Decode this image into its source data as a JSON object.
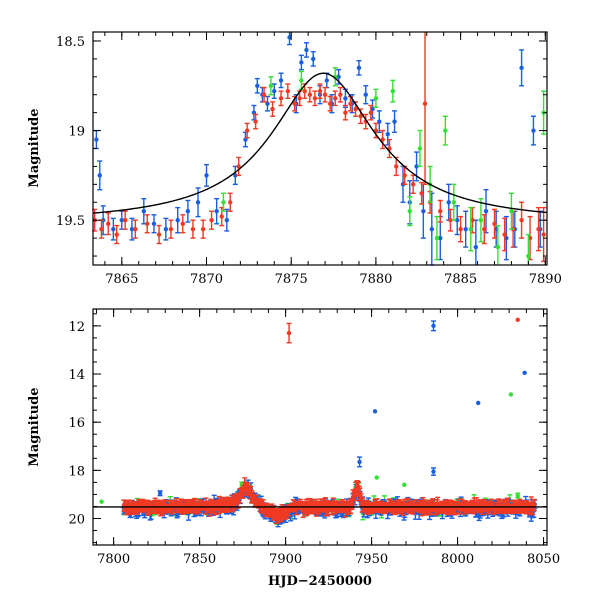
{
  "colors": {
    "blue": "#1a5fe0",
    "red": "#f03a24",
    "green": "#33e033",
    "model": "#000000"
  },
  "chart_data": [
    {
      "type": "scatter",
      "title": "",
      "xlabel": "",
      "ylabel": "Magnitude",
      "xlim": [
        7863.3,
        7890.1
      ],
      "ylim": [
        19.75,
        18.45
      ],
      "y_inverted": true,
      "x_ticks": [
        "7865",
        "7870",
        "7875",
        "7880",
        "7885",
        "7890"
      ],
      "y_ticks": [
        "18.5",
        "19",
        "19.5"
      ],
      "model_curve": {
        "description_visible": false,
        "peak_x": 7876.9,
        "peak_mag": 18.68,
        "baseline_mag": 19.52,
        "fwhm_days": 7.5
      },
      "series": [
        {
          "color": "blue",
          "x": [
            7863.5,
            7863.7,
            7863.9,
            7864.5,
            7865.0,
            7865.6,
            7866.3,
            7866.9,
            7867.6,
            7868.3,
            7868.9,
            7869.5,
            7870.0,
            7870.6,
            7871.2,
            7871.7,
            7872.3,
            7872.8,
            7873.0,
            7873.3,
            7873.6,
            7874.0,
            7874.4,
            7874.9,
            7875.3,
            7875.6,
            7875.9,
            7876.3,
            7876.7,
            7877.1,
            7877.4,
            7877.8,
            7878.2,
            7878.6,
            7879.0,
            7879.4,
            7879.8,
            7880.2,
            7880.7,
            7881.1,
            7881.6,
            7882.0,
            7882.4,
            7882.8,
            7883.3,
            7883.8,
            7884.3,
            7884.8,
            7885.3,
            7885.9,
            7886.5,
            7887.1,
            7887.7,
            7888.2,
            7888.6,
            7889.3,
            7889.7
          ],
          "y": [
            19.05,
            19.25,
            19.5,
            19.55,
            19.5,
            19.55,
            19.45,
            19.52,
            19.55,
            19.5,
            19.45,
            19.4,
            19.25,
            19.45,
            19.5,
            19.25,
            19.05,
            18.9,
            18.75,
            18.8,
            18.85,
            18.78,
            18.72,
            18.48,
            18.85,
            18.62,
            18.55,
            18.6,
            18.8,
            18.72,
            18.85,
            18.7,
            18.82,
            18.85,
            18.65,
            18.8,
            18.88,
            18.95,
            19.02,
            18.95,
            19.3,
            19.4,
            19.2,
            19.45,
            19.55,
            19.6,
            19.4,
            19.5,
            19.55,
            19.65,
            19.45,
            19.55,
            19.6,
            19.55,
            18.65,
            19.0,
            19.55
          ],
          "err": [
            0.05,
            0.08,
            0.08,
            0.06,
            0.05,
            0.06,
            0.07,
            0.05,
            0.06,
            0.07,
            0.06,
            0.08,
            0.06,
            0.07,
            0.06,
            0.05,
            0.04,
            0.04,
            0.04,
            0.04,
            0.04,
            0.04,
            0.04,
            0.04,
            0.05,
            0.04,
            0.04,
            0.04,
            0.05,
            0.04,
            0.05,
            0.04,
            0.05,
            0.05,
            0.04,
            0.05,
            0.05,
            0.06,
            0.06,
            0.06,
            0.1,
            0.12,
            0.08,
            0.15,
            0.2,
            0.12,
            0.1,
            0.08,
            0.1,
            0.15,
            0.12,
            0.1,
            0.12,
            0.1,
            0.1,
            0.08,
            0.1
          ]
        },
        {
          "color": "red",
          "x": [
            7863.4,
            7863.8,
            7864.2,
            7864.7,
            7865.2,
            7865.8,
            7866.5,
            7867.2,
            7867.9,
            7868.6,
            7869.2,
            7869.8,
            7870.3,
            7870.9,
            7871.4,
            7871.9,
            7872.4,
            7872.9,
            7873.4,
            7873.9,
            7874.4,
            7874.8,
            7875.2,
            7875.5,
            7875.8,
            7876.1,
            7876.4,
            7876.7,
            7877.0,
            7877.3,
            7877.6,
            7877.9,
            7878.2,
            7878.5,
            7878.8,
            7879.1,
            7879.4,
            7879.7,
            7880.0,
            7880.4,
            7880.8,
            7881.2,
            7881.7,
            7882.2,
            7882.7,
            7882.9,
            7883.2,
            7883.8,
            7884.4,
            7885.0,
            7885.7,
            7886.4,
            7887.0,
            7887.6,
            7888.1,
            7888.6,
            7889.1,
            7889.6,
            7889.9
          ],
          "y": [
            19.5,
            19.55,
            19.52,
            19.58,
            19.5,
            19.55,
            19.52,
            19.58,
            19.55,
            19.52,
            19.55,
            19.55,
            19.5,
            19.48,
            19.4,
            19.2,
            19.0,
            18.95,
            18.8,
            18.88,
            18.82,
            18.78,
            18.85,
            18.82,
            18.78,
            18.8,
            18.82,
            18.78,
            18.8,
            18.85,
            18.82,
            18.8,
            18.9,
            18.85,
            18.88,
            18.92,
            18.95,
            18.9,
            19.0,
            19.05,
            19.1,
            19.2,
            19.25,
            19.3,
            19.35,
            18.85,
            19.4,
            19.45,
            19.5,
            19.55,
            19.5,
            19.55,
            19.52,
            19.58,
            19.55,
            19.5,
            19.6,
            19.55,
            19.58
          ],
          "err": [
            0.06,
            0.05,
            0.06,
            0.05,
            0.05,
            0.05,
            0.05,
            0.05,
            0.05,
            0.05,
            0.05,
            0.05,
            0.05,
            0.05,
            0.05,
            0.05,
            0.04,
            0.04,
            0.04,
            0.04,
            0.04,
            0.04,
            0.04,
            0.04,
            0.04,
            0.04,
            0.04,
            0.04,
            0.04,
            0.04,
            0.04,
            0.04,
            0.04,
            0.04,
            0.04,
            0.04,
            0.04,
            0.04,
            0.04,
            0.05,
            0.05,
            0.05,
            0.05,
            0.05,
            0.06,
            0.45,
            0.06,
            0.06,
            0.06,
            0.07,
            0.07,
            0.08,
            0.08,
            0.09,
            0.1,
            0.1,
            0.12,
            0.12,
            0.15
          ]
        },
        {
          "color": "green",
          "x": [
            7871.0,
            7873.8,
            7875.6,
            7877.6,
            7880.0,
            7881.0,
            7882.0,
            7882.6,
            7883.2,
            7883.6,
            7884.1,
            7884.6,
            7885.6,
            7886.2,
            7887.2,
            7888.0,
            7889.0,
            7889.9
          ],
          "y": [
            19.4,
            18.75,
            18.72,
            18.7,
            18.82,
            18.78,
            19.45,
            19.1,
            19.3,
            19.6,
            19.0,
            19.4,
            19.55,
            19.5,
            19.65,
            19.45,
            19.7,
            18.9
          ],
          "err": [
            0.05,
            0.05,
            0.05,
            0.05,
            0.05,
            0.06,
            0.08,
            0.1,
            0.1,
            0.12,
            0.08,
            0.1,
            0.12,
            0.12,
            0.12,
            0.1,
            0.12,
            0.12
          ]
        }
      ]
    },
    {
      "type": "scatter",
      "title": "",
      "xlabel": "HJD−2450000",
      "ylabel": "Magnitude",
      "xlim": [
        7788,
        8052
      ],
      "ylim": [
        21.1,
        11.3
      ],
      "y_inverted": true,
      "x_ticks": [
        "7800",
        "7850",
        "7900",
        "7950",
        "8000",
        "8050"
      ],
      "y_ticks": [
        "12",
        "14",
        "16",
        "18",
        "20"
      ],
      "baseline_mag": 19.52,
      "outliers": [
        {
          "color": "red",
          "x": 7902,
          "y": 12.3,
          "err": 0.4
        },
        {
          "color": "blue",
          "x": 7986,
          "y": 12.0,
          "err": 0.2
        },
        {
          "color": "red",
          "x": 8035,
          "y": 11.75,
          "err": 0
        },
        {
          "color": "blue",
          "x": 8039,
          "y": 13.95,
          "err": 0
        },
        {
          "color": "blue",
          "x": 7952,
          "y": 15.55,
          "err": 0
        },
        {
          "color": "blue",
          "x": 8012,
          "y": 15.2,
          "err": 0
        },
        {
          "color": "green",
          "x": 8031,
          "y": 14.85,
          "err": 0
        },
        {
          "color": "blue",
          "x": 7986,
          "y": 18.05,
          "err": 0.15
        },
        {
          "color": "blue",
          "x": 7943,
          "y": 17.65,
          "err": 0.2
        },
        {
          "color": "green",
          "x": 7793,
          "y": 19.3,
          "err": 0
        },
        {
          "color": "green",
          "x": 7953,
          "y": 18.3,
          "err": 0
        },
        {
          "color": "green",
          "x": 7969,
          "y": 18.6,
          "err": 0
        },
        {
          "color": "blue",
          "x": 7827,
          "y": 18.95,
          "err": 0.1
        },
        {
          "color": "green",
          "x": 8035,
          "y": 19.05,
          "err": 0.1
        }
      ],
      "dense_range": [
        7806,
        8045
      ],
      "dense_note_visible": false
    }
  ]
}
